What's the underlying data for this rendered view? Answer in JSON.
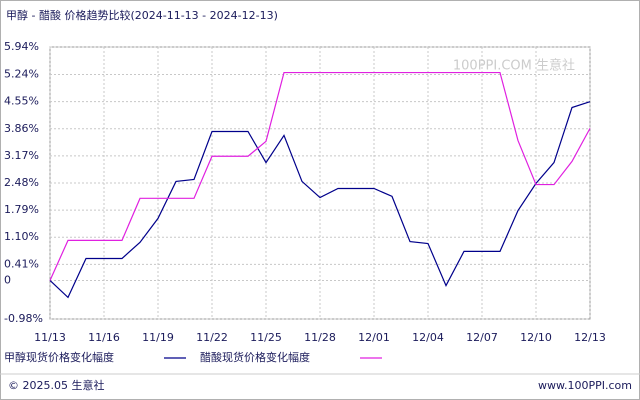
{
  "chart_data": {
    "type": "line",
    "title": "甲醇 - 醋酸 价格趋势比较(2024-11-13 - 2024-12-13)",
    "watermark": "100PPI.COM 生意社",
    "footer_left": "© 2025.05 生意社",
    "footer_right": "www.100PPI.com",
    "categories": [
      "11/13",
      null,
      null,
      "11/16",
      null,
      null,
      "11/19",
      null,
      null,
      "11/22",
      null,
      null,
      "11/25",
      null,
      null,
      "11/28",
      null,
      null,
      "12/01",
      null,
      null,
      "12/04",
      null,
      null,
      "12/07",
      null,
      null,
      "12/10",
      null,
      null,
      "12/13"
    ],
    "series": [
      {
        "name": "甲醇现货价格变化幅度",
        "color": "#00008b",
        "values": [
          0,
          -0.43,
          0.56,
          0.56,
          0.56,
          0.97,
          1.58,
          2.52,
          2.57,
          3.79,
          3.79,
          3.79,
          3.0,
          3.69,
          2.52,
          2.11,
          2.34,
          2.34,
          2.34,
          2.14,
          0.99,
          0.94,
          -0.13,
          0.74,
          0.74,
          0.74,
          1.78,
          2.47,
          3.0,
          4.4,
          4.55
        ]
      },
      {
        "name": "醋酸现货价格变化幅度",
        "color": "#e020e0",
        "values": [
          0,
          1.02,
          1.02,
          1.02,
          1.02,
          2.09,
          2.09,
          2.09,
          2.09,
          3.16,
          3.16,
          3.16,
          3.54,
          5.29,
          5.29,
          5.29,
          5.29,
          5.29,
          5.29,
          5.29,
          5.29,
          5.29,
          5.29,
          5.29,
          5.29,
          5.29,
          3.56,
          2.44,
          2.44,
          3.03,
          3.87
        ]
      }
    ],
    "ylim": [
      -0.98,
      5.94
    ],
    "yticks": [
      {
        "value": -0.98,
        "label": "-0.98%"
      },
      0,
      {
        "value": 0.41,
        "label": "0.41%"
      },
      {
        "value": 1.1,
        "label": "1.10%"
      },
      {
        "value": 1.79,
        "label": "1.79%"
      },
      {
        "value": 2.48,
        "label": "2.48%"
      },
      {
        "value": 3.17,
        "label": "3.17%"
      },
      {
        "value": 3.86,
        "label": "3.86%"
      },
      {
        "value": 4.55,
        "label": "4.55%"
      },
      {
        "value": 5.24,
        "label": "5.24%"
      },
      {
        "value": 5.94,
        "label": "5.94%"
      }
    ],
    "grid": true
  }
}
